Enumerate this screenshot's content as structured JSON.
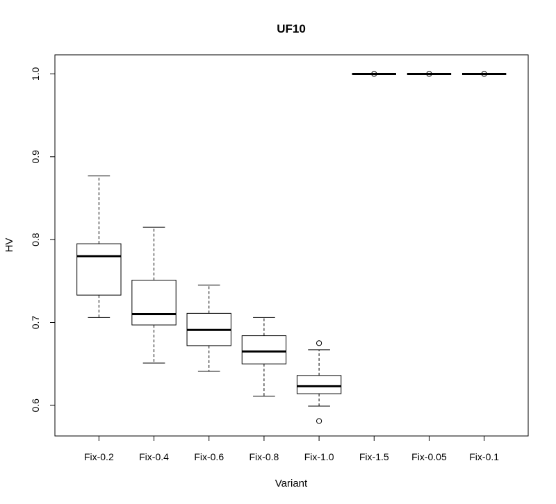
{
  "chart_data": {
    "type": "boxplot",
    "title": "UF10",
    "xlabel": "Variant",
    "ylabel": "HV",
    "ylim": [
      0.563,
      1.023
    ],
    "yticks": [
      0.6,
      0.7,
      0.8,
      0.9,
      1.0
    ],
    "ytick_labels": [
      "0.6",
      "0.7",
      "0.8",
      "0.9",
      "1.0"
    ],
    "categories": [
      "Fix-0.2",
      "Fix-0.4",
      "Fix-0.6",
      "Fix-0.8",
      "Fix-1.0",
      "Fix-1.5",
      "Fix-0.05",
      "Fix-0.1"
    ],
    "boxes": [
      {
        "whisker_low": 0.706,
        "q1": 0.733,
        "median": 0.78,
        "q3": 0.795,
        "whisker_high": 0.877,
        "outliers": []
      },
      {
        "whisker_low": 0.651,
        "q1": 0.697,
        "median": 0.71,
        "q3": 0.751,
        "whisker_high": 0.815,
        "outliers": []
      },
      {
        "whisker_low": 0.641,
        "q1": 0.672,
        "median": 0.691,
        "q3": 0.711,
        "whisker_high": 0.745,
        "outliers": []
      },
      {
        "whisker_low": 0.611,
        "q1": 0.65,
        "median": 0.665,
        "q3": 0.684,
        "whisker_high": 0.706,
        "outliers": []
      },
      {
        "whisker_low": 0.599,
        "q1": 0.614,
        "median": 0.623,
        "q3": 0.636,
        "whisker_high": 0.667,
        "outliers": [
          0.675,
          0.581
        ]
      },
      {
        "whisker_low": 1.0,
        "q1": 1.0,
        "median": 1.0,
        "q3": 1.0,
        "whisker_high": 1.0,
        "outliers": [
          1.0
        ]
      },
      {
        "whisker_low": 1.0,
        "q1": 1.0,
        "median": 1.0,
        "q3": 1.0,
        "whisker_high": 1.0,
        "outliers": [
          1.0
        ]
      },
      {
        "whisker_low": 1.0,
        "q1": 1.0,
        "median": 1.0,
        "q3": 1.0,
        "whisker_high": 1.0,
        "outliers": [
          1.0
        ]
      }
    ],
    "grid": false,
    "legend": "none"
  }
}
